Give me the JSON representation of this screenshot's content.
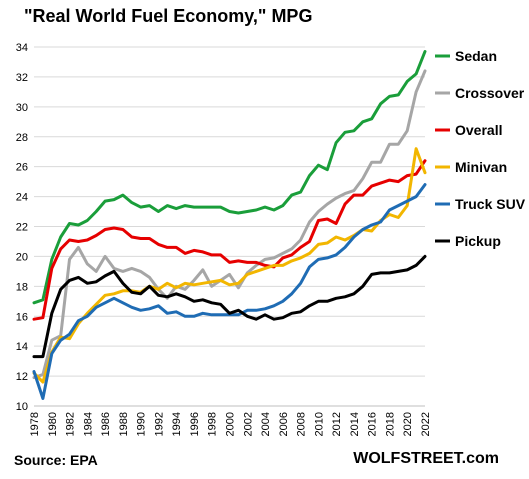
{
  "chart_data": {
    "type": "line",
    "title": "\"Real World Fuel Economy,\" MPG",
    "source": "Source: EPA",
    "watermark": "WOLFSTREET.com",
    "xlabel": "",
    "ylabel": "",
    "xlim": [
      1978,
      2022
    ],
    "ylim": [
      10,
      34
    ],
    "yticks": [
      10,
      12,
      14,
      16,
      18,
      20,
      22,
      24,
      26,
      28,
      30,
      32,
      34
    ],
    "xticks": [
      1978,
      1980,
      1982,
      1984,
      1986,
      1988,
      1990,
      1992,
      1994,
      1996,
      1998,
      2000,
      2002,
      2004,
      2006,
      2008,
      2010,
      2012,
      2014,
      2016,
      2018,
      2020,
      2022
    ],
    "grid": true,
    "legend": "right",
    "x": [
      1978,
      1979,
      1980,
      1981,
      1982,
      1983,
      1984,
      1985,
      1986,
      1987,
      1988,
      1989,
      1990,
      1991,
      1992,
      1993,
      1994,
      1995,
      1996,
      1997,
      1998,
      1999,
      2000,
      2001,
      2002,
      2003,
      2004,
      2005,
      2006,
      2007,
      2008,
      2009,
      2010,
      2011,
      2012,
      2013,
      2014,
      2015,
      2016,
      2017,
      2018,
      2019,
      2020,
      2021,
      2022
    ],
    "series": [
      {
        "name": "Sedan",
        "color": "#1a9e3a",
        "values": [
          16.9,
          17.1,
          19.8,
          21.3,
          22.2,
          22.1,
          22.4,
          23.0,
          23.7,
          23.8,
          24.1,
          23.6,
          23.3,
          23.4,
          23.0,
          23.4,
          23.2,
          23.4,
          23.3,
          23.3,
          23.3,
          23.3,
          23.0,
          22.9,
          23.0,
          23.1,
          23.3,
          23.1,
          23.4,
          24.1,
          24.3,
          25.4,
          26.1,
          25.8,
          27.6,
          28.3,
          28.4,
          29.0,
          29.2,
          30.2,
          30.7,
          30.8,
          31.7,
          32.2,
          33.7
        ]
      },
      {
        "name": "Crossover",
        "color": "#a6a6a6",
        "values": [
          11.9,
          12.1,
          14.4,
          14.7,
          19.8,
          20.6,
          19.5,
          19.0,
          20.0,
          19.2,
          19.0,
          19.2,
          19.0,
          18.6,
          17.8,
          17.2,
          18.0,
          17.8,
          18.4,
          19.1,
          18.0,
          18.4,
          18.8,
          17.9,
          18.9,
          19.4,
          19.8,
          19.9,
          20.2,
          20.5,
          21.1,
          22.3,
          23.0,
          23.5,
          23.9,
          24.2,
          24.4,
          25.2,
          26.3,
          26.3,
          27.5,
          27.5,
          28.4,
          31.0,
          32.4
        ]
      },
      {
        "name": "Overall",
        "color": "#e60000",
        "values": [
          15.8,
          15.9,
          19.2,
          20.5,
          21.1,
          21.0,
          21.1,
          21.4,
          21.8,
          21.9,
          21.8,
          21.3,
          21.2,
          21.2,
          20.8,
          20.6,
          20.6,
          20.2,
          20.4,
          20.3,
          20.1,
          20.1,
          19.6,
          19.7,
          19.6,
          19.6,
          19.4,
          19.3,
          19.9,
          20.1,
          20.6,
          21.0,
          22.4,
          22.5,
          22.2,
          23.5,
          24.1,
          24.1,
          24.7,
          24.9,
          25.1,
          25.0,
          25.4,
          25.5,
          26.4
        ]
      },
      {
        "name": "Minivan",
        "color": "#f2b600",
        "values": [
          12.2,
          11.6,
          13.6,
          14.6,
          14.5,
          15.5,
          16.2,
          16.8,
          17.4,
          17.5,
          17.7,
          17.7,
          17.6,
          18.0,
          17.8,
          18.2,
          17.9,
          18.2,
          18.1,
          18.2,
          18.3,
          18.4,
          18.1,
          18.2,
          18.8,
          19.0,
          19.2,
          19.4,
          19.4,
          19.7,
          19.9,
          20.2,
          20.8,
          20.9,
          21.3,
          21.1,
          21.4,
          21.8,
          21.7,
          22.4,
          22.8,
          22.6,
          23.4,
          27.2,
          25.6
        ]
      },
      {
        "name": "Truck SUV",
        "color": "#1f6cb4",
        "values": [
          12.3,
          10.5,
          13.5,
          14.4,
          14.8,
          15.7,
          16.0,
          16.6,
          16.9,
          17.2,
          16.9,
          16.6,
          16.4,
          16.5,
          16.7,
          16.2,
          16.3,
          16.0,
          16.0,
          16.2,
          16.1,
          16.1,
          16.1,
          16.1,
          16.4,
          16.4,
          16.5,
          16.7,
          17.0,
          17.5,
          18.2,
          19.3,
          19.8,
          19.9,
          20.1,
          20.6,
          21.3,
          21.8,
          22.1,
          22.3,
          23.1,
          23.4,
          23.7,
          24.0,
          24.8
        ]
      },
      {
        "name": "Pickup",
        "color": "#000000",
        "values": [
          13.3,
          13.3,
          16.2,
          17.8,
          18.4,
          18.6,
          18.2,
          18.3,
          18.7,
          19.0,
          18.2,
          17.6,
          17.5,
          18.0,
          17.4,
          17.3,
          17.5,
          17.3,
          17.0,
          17.1,
          16.9,
          16.8,
          16.2,
          16.4,
          16.0,
          15.8,
          16.1,
          15.8,
          15.9,
          16.2,
          16.3,
          16.7,
          17.0,
          17.0,
          17.2,
          17.3,
          17.5,
          18.0,
          18.8,
          18.9,
          18.9,
          19.0,
          19.1,
          19.4,
          20.0
        ]
      }
    ]
  }
}
